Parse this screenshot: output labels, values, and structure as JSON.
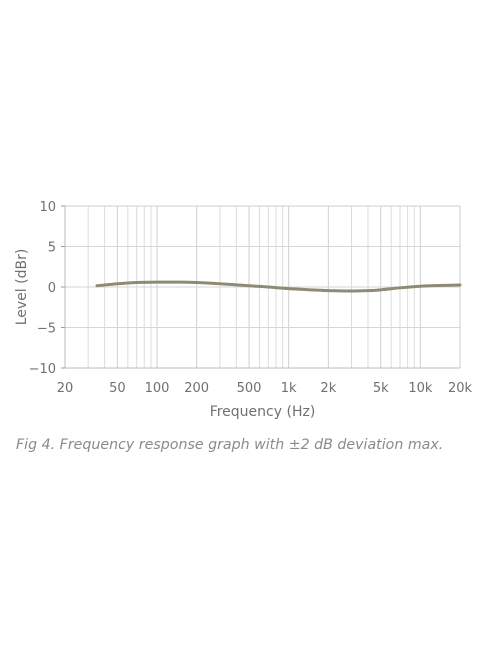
{
  "chart_data": {
    "type": "line",
    "xlabel": "Frequency (Hz)",
    "ylabel": "Level (dBr)",
    "x_scale": "log",
    "xlim": [
      20,
      20000
    ],
    "ylim": [
      -10,
      10
    ],
    "x_ticks": [
      20,
      50,
      100,
      200,
      500,
      1000,
      2000,
      5000,
      10000,
      20000
    ],
    "x_tick_labels": [
      "20",
      "50",
      "100",
      "200",
      "500",
      "1k",
      "2k",
      "5k",
      "10k",
      "20k"
    ],
    "y_ticks": [
      10,
      5,
      0,
      -5,
      -10
    ],
    "y_tick_labels": [
      "10",
      "5",
      "0",
      "−5",
      "−10"
    ],
    "grid": true,
    "series": [
      {
        "color": "#8f8a74",
        "x": [
          35,
          50,
          70,
          100,
          150,
          200,
          300,
          500,
          700,
          1000,
          1500,
          2000,
          3000,
          4000,
          5000,
          7000,
          10000,
          15000,
          20000
        ],
        "y": [
          0.15,
          0.4,
          0.55,
          0.6,
          0.6,
          0.55,
          0.4,
          0.15,
          0.0,
          -0.2,
          -0.35,
          -0.45,
          -0.5,
          -0.45,
          -0.35,
          -0.1,
          0.1,
          0.2,
          0.25
        ]
      }
    ]
  },
  "caption": "Fig 4. Frequency response graph with ±2 dB deviation max."
}
